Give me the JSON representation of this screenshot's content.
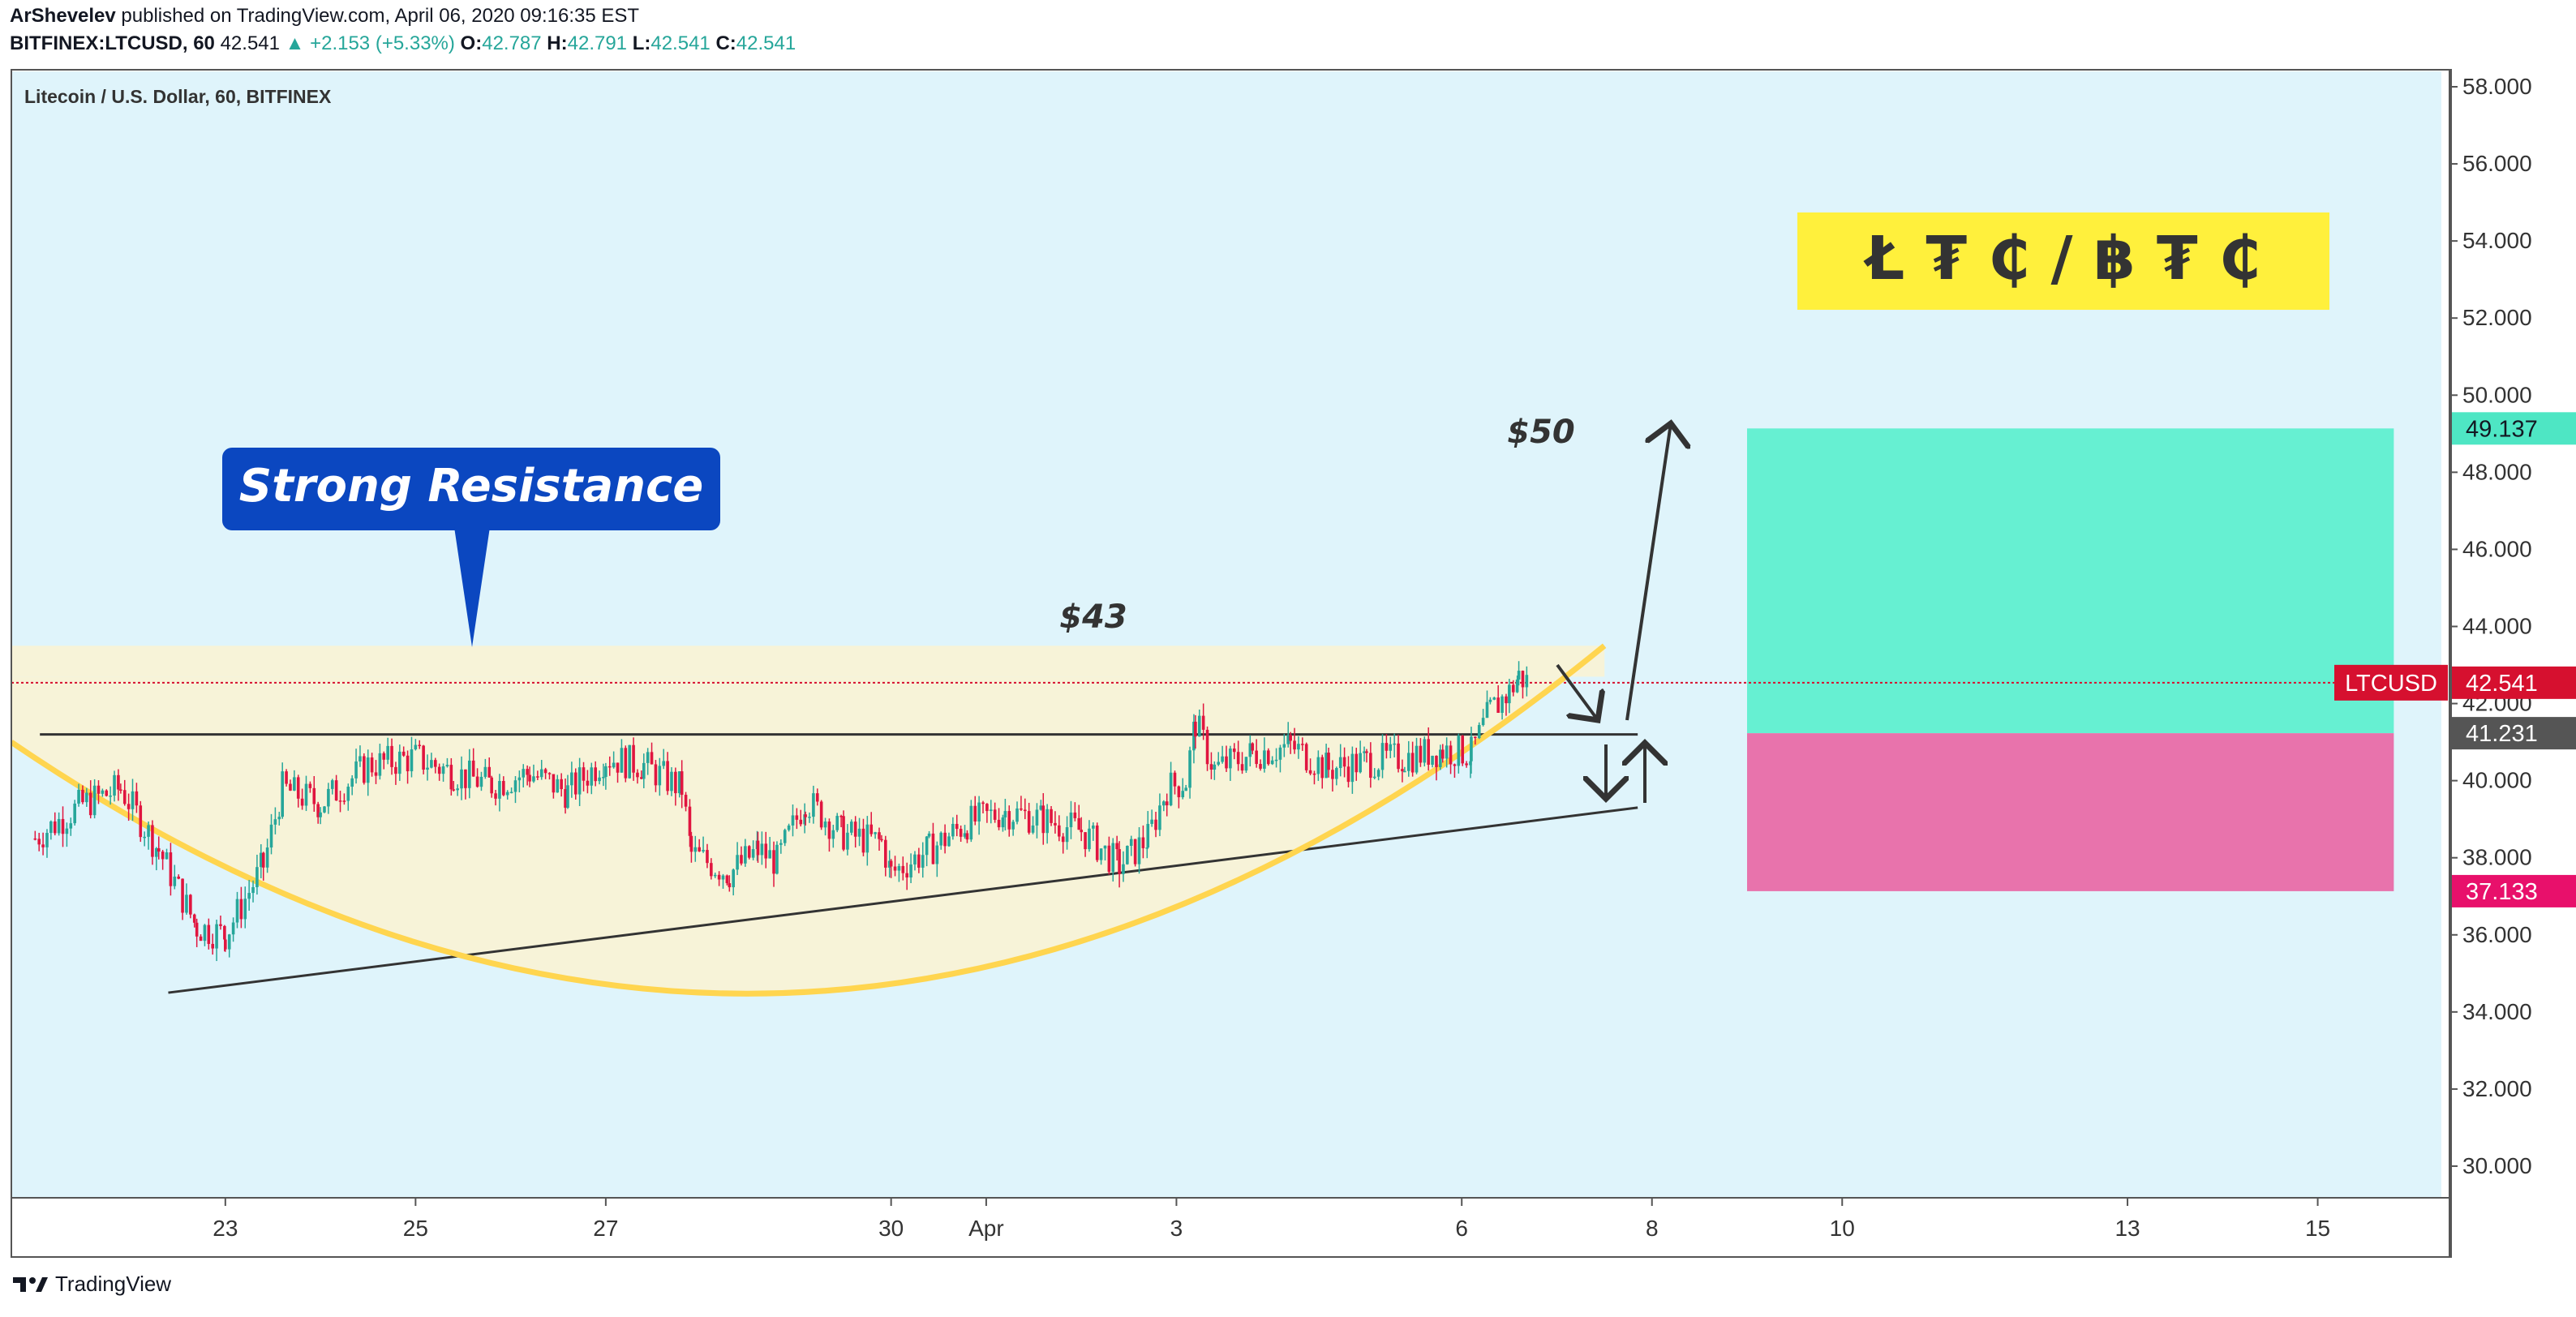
{
  "header": {
    "author": "ArShevelev",
    "published_text": "published on TradingView.com, April 06, 2020 09:16:35 EST",
    "symbol": "BITFINEX:LTCUSD, 60",
    "last": "42.541",
    "change": "▲ +2.153 (+5.33%)",
    "open_label": "O:",
    "open": "42.787",
    "high_label": "H:",
    "high": "42.791",
    "low_label": "L:",
    "low": "42.541",
    "close_label": "C:",
    "close": "42.541"
  },
  "footer": {
    "brand": "TradingView"
  },
  "colors": {
    "background": "#dff4fb",
    "up": "#26a69a",
    "down": "#e0153f",
    "resistance_zone": "#f7f3d8",
    "cup_curve": "#ffd54f",
    "target_zone": "#66f0d2",
    "stop_zone": "#e873ac",
    "callout": "#0b47c0",
    "ltc_banner": "#fff03c",
    "price_tag": "#d6102f"
  },
  "chart_data": {
    "type": "candlestick",
    "title": "Litecoin / U.S. Dollar, 60, BITFINEX",
    "ylim": [
      29.2,
      58.4
    ],
    "y_ticks": [
      30,
      32,
      34,
      36,
      38,
      40,
      42,
      44,
      46,
      48,
      50,
      52,
      54,
      56,
      58
    ],
    "x_ticks": [
      {
        "label": "23",
        "day": 23
      },
      {
        "label": "25",
        "day": 25
      },
      {
        "label": "27",
        "day": 27
      },
      {
        "label": "30",
        "day": 30
      },
      {
        "label": "Apr",
        "day": 31
      },
      {
        "label": "3",
        "day": 33
      },
      {
        "label": "6",
        "day": 36
      },
      {
        "label": "8",
        "day": 38
      },
      {
        "label": "10",
        "day": 40
      },
      {
        "label": "13",
        "day": 43
      },
      {
        "label": "15",
        "day": 45
      }
    ],
    "xlim": [
      20.75,
      46.3
    ],
    "price_path": [
      [
        21.0,
        38.5
      ],
      [
        21.5,
        39.4
      ],
      [
        21.9,
        39.8
      ],
      [
        22.3,
        38.2
      ],
      [
        22.7,
        36.2
      ],
      [
        23.0,
        36.0
      ],
      [
        23.4,
        37.8
      ],
      [
        23.6,
        39.8
      ],
      [
        24.0,
        39.4
      ],
      [
        24.5,
        40.4
      ],
      [
        25.0,
        40.6
      ],
      [
        25.4,
        40.2
      ],
      [
        25.8,
        39.9
      ],
      [
        26.2,
        40.2
      ],
      [
        26.6,
        39.7
      ],
      [
        27.0,
        40.6
      ],
      [
        27.4,
        40.4
      ],
      [
        27.8,
        39.8
      ],
      [
        27.9,
        38.1
      ],
      [
        28.3,
        37.6
      ],
      [
        28.6,
        38.2
      ],
      [
        28.8,
        37.9
      ],
      [
        29.1,
        39.5
      ],
      [
        29.5,
        38.6
      ],
      [
        29.9,
        38.4
      ],
      [
        30.0,
        37.6
      ],
      [
        30.4,
        38.2
      ],
      [
        30.8,
        38.9
      ],
      [
        31.2,
        39.2
      ],
      [
        31.6,
        39.0
      ],
      [
        32.0,
        38.7
      ],
      [
        32.4,
        37.8
      ],
      [
        32.7,
        38.5
      ],
      [
        32.9,
        39.8
      ],
      [
        33.1,
        40.0
      ],
      [
        33.2,
        41.5
      ],
      [
        33.4,
        40.3
      ],
      [
        33.8,
        40.7
      ],
      [
        34.2,
        40.9
      ],
      [
        34.6,
        40.3
      ],
      [
        35.0,
        40.5
      ],
      [
        35.4,
        40.6
      ],
      [
        35.8,
        40.8
      ],
      [
        36.1,
        40.7
      ],
      [
        36.3,
        41.8
      ],
      [
        36.5,
        42.3
      ],
      [
        36.6,
        42.7
      ],
      [
        36.7,
        42.55
      ]
    ],
    "annotations": {
      "callout": "Strong Resistance",
      "label_43": "$43",
      "label_50": "$50",
      "ltc_banner": "Ł ₮ ₵ / ฿ ₮ ₵"
    },
    "resistance_zone": {
      "top": 43.5,
      "bottom": 42.7,
      "day_start": 20.75,
      "day_end": 37.5
    },
    "price_lines": [
      {
        "label": "LTCUSD",
        "value": "42.541",
        "y": 42.541
      },
      {
        "value": "41.231",
        "y": 41.231
      },
      {
        "value": "49.137",
        "y": 49.137
      },
      {
        "value": "37.133",
        "y": 37.133
      }
    ],
    "horizontal_support": {
      "y": 41.2,
      "day_start": 21.05,
      "day_end": 37.85
    },
    "rising_trendline": {
      "from": [
        22.4,
        34.5
      ],
      "to": [
        37.85,
        39.3
      ]
    },
    "target_zone": {
      "top": 49.137,
      "bottom": 41.231,
      "day_start": 39.0,
      "day_end": 45.8
    },
    "stop_zone": {
      "top": 41.231,
      "bottom": 37.133,
      "day_start": 39.0,
      "day_end": 45.8
    }
  }
}
